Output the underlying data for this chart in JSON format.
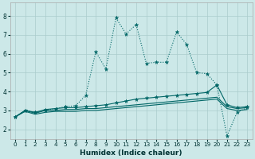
{
  "xlabel": "Humidex (Indice chaleur)",
  "background_color": "#cce8e8",
  "grid_color": "#aacccc",
  "line_color": "#006666",
  "xlim": [
    -0.5,
    23.5
  ],
  "ylim": [
    1.5,
    8.7
  ],
  "xticks": [
    0,
    1,
    2,
    3,
    4,
    5,
    6,
    7,
    8,
    9,
    10,
    11,
    12,
    13,
    14,
    15,
    16,
    17,
    18,
    19,
    20,
    21,
    22,
    23
  ],
  "yticks": [
    2,
    3,
    4,
    5,
    6,
    7,
    8
  ],
  "series": {
    "main": {
      "x": [
        0,
        1,
        2,
        3,
        4,
        5,
        6,
        7,
        8,
        9,
        10,
        11,
        12,
        13,
        14,
        15,
        16,
        17,
        18,
        19,
        20,
        21,
        22,
        23
      ],
      "y": [
        2.65,
        3.0,
        2.9,
        3.0,
        3.1,
        3.2,
        3.25,
        3.8,
        6.1,
        5.2,
        7.9,
        7.05,
        7.55,
        5.5,
        5.55,
        5.55,
        7.15,
        6.5,
        5.0,
        4.95,
        4.35,
        1.65,
        2.9,
        3.15
      ]
    },
    "upper_flat": {
      "x": [
        0,
        1,
        2,
        3,
        4,
        5,
        6,
        7,
        8,
        9,
        10,
        11,
        12,
        13,
        14,
        15,
        16,
        17,
        18,
        19,
        20,
        21,
        22,
        23
      ],
      "y": [
        2.65,
        3.0,
        2.9,
        3.05,
        3.1,
        3.15,
        3.15,
        3.2,
        3.25,
        3.3,
        3.4,
        3.5,
        3.6,
        3.65,
        3.7,
        3.75,
        3.8,
        3.85,
        3.9,
        3.95,
        4.35,
        3.3,
        3.15,
        3.2
      ]
    },
    "mid_flat": {
      "x": [
        0,
        1,
        2,
        3,
        4,
        5,
        6,
        7,
        8,
        9,
        10,
        11,
        12,
        13,
        14,
        15,
        16,
        17,
        18,
        19,
        20,
        21,
        22,
        23
      ],
      "y": [
        2.65,
        3.0,
        2.85,
        3.0,
        3.0,
        3.05,
        3.05,
        3.1,
        3.1,
        3.15,
        3.2,
        3.25,
        3.3,
        3.35,
        3.4,
        3.45,
        3.5,
        3.55,
        3.6,
        3.65,
        3.7,
        3.2,
        3.1,
        3.15
      ]
    },
    "lower_flat": {
      "x": [
        0,
        1,
        2,
        3,
        4,
        5,
        6,
        7,
        8,
        9,
        10,
        11,
        12,
        13,
        14,
        15,
        16,
        17,
        18,
        19,
        20,
        21,
        22,
        23
      ],
      "y": [
        2.65,
        2.95,
        2.8,
        2.9,
        2.95,
        2.95,
        2.95,
        3.0,
        3.0,
        3.05,
        3.1,
        3.15,
        3.2,
        3.25,
        3.3,
        3.35,
        3.4,
        3.45,
        3.5,
        3.55,
        3.6,
        3.1,
        3.0,
        3.05
      ]
    }
  },
  "marker_indices_main": [
    0,
    1,
    2,
    3,
    4,
    5,
    6,
    7,
    8,
    9,
    10,
    11,
    12,
    13,
    14,
    15,
    16,
    17,
    18,
    19,
    20,
    21,
    22,
    23
  ],
  "marker_indices_upper": [
    0,
    1,
    2,
    3,
    4,
    7,
    8,
    9,
    19,
    20,
    21,
    22,
    23
  ]
}
